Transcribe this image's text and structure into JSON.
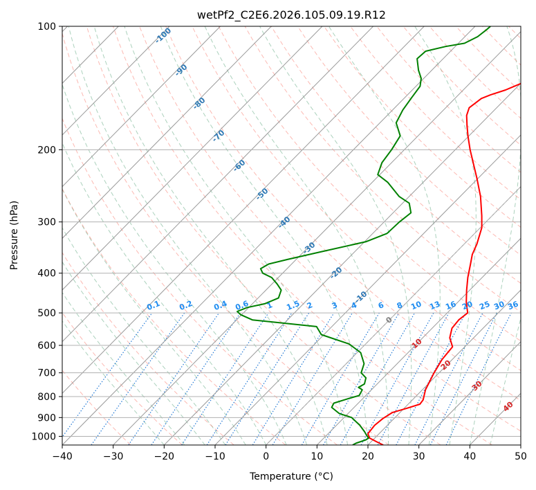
{
  "chart_data": {
    "type": "line",
    "title": "wetPf2_C2E6.2026.105.09.19.R12",
    "xlabel": "Temperature (°C)",
    "ylabel": "Pressure (hPa)",
    "xlim": [
      -40,
      50
    ],
    "ylim": [
      1050,
      100
    ],
    "y_scale": "log",
    "x_ticks": [
      -40,
      -30,
      -20,
      -10,
      0,
      10,
      20,
      30,
      40,
      50
    ],
    "y_ticks": [
      100,
      200,
      300,
      400,
      500,
      600,
      700,
      800,
      900,
      1000
    ],
    "grid": true,
    "skew_isotherms": true,
    "series": [
      {
        "color": "#ff0000",
        "points": [
          [
            1050,
            23.0
          ],
          [
            1030,
            21.0
          ],
          [
            1010,
            19.0
          ],
          [
            985,
            17.8
          ],
          [
            940,
            17.5
          ],
          [
            905,
            17.8
          ],
          [
            875,
            18.5
          ],
          [
            855,
            20.5
          ],
          [
            835,
            22.3
          ],
          [
            815,
            22.1
          ],
          [
            770,
            20.6
          ],
          [
            700,
            19.0
          ],
          [
            650,
            18.0
          ],
          [
            605,
            17.6
          ],
          [
            575,
            15.3
          ],
          [
            545,
            13.9
          ],
          [
            520,
            13.6
          ],
          [
            500,
            14.0
          ],
          [
            470,
            11.6
          ],
          [
            440,
            9.4
          ],
          [
            410,
            7.2
          ],
          [
            380,
            5.1
          ],
          [
            360,
            3.6
          ],
          [
            340,
            2.5
          ],
          [
            310,
            0.3
          ],
          [
            290,
            -2.0
          ],
          [
            260,
            -6.0
          ],
          [
            235,
            -10.2
          ],
          [
            200,
            -17.1
          ],
          [
            185,
            -20.2
          ],
          [
            175,
            -22.3
          ],
          [
            165,
            -24.4
          ],
          [
            158,
            -25.4
          ],
          [
            150,
            -24.8
          ],
          [
            147,
            -23.7
          ],
          [
            143,
            -21.7
          ],
          [
            138,
            -20.0
          ],
          [
            132,
            -19.5
          ],
          [
            127,
            -20.0
          ],
          [
            121,
            -19.4
          ],
          [
            116,
            -20.7
          ],
          [
            112,
            -21.6
          ],
          [
            107,
            -23.1
          ],
          [
            103,
            -24.5
          ],
          [
            100,
            -25.5
          ]
        ]
      },
      {
        "color": "#008000",
        "points": [
          [
            1050,
            17.0
          ],
          [
            1040,
            17.3
          ],
          [
            1020,
            18.6
          ],
          [
            1010,
            18.8
          ],
          [
            995,
            17.9
          ],
          [
            975,
            16.8
          ],
          [
            940,
            14.6
          ],
          [
            900,
            11.5
          ],
          [
            880,
            8.3
          ],
          [
            850,
            5.6
          ],
          [
            830,
            5.2
          ],
          [
            810,
            7.1
          ],
          [
            795,
            8.7
          ],
          [
            770,
            8.2
          ],
          [
            760,
            7.0
          ],
          [
            745,
            7.5
          ],
          [
            720,
            6.6
          ],
          [
            700,
            4.7
          ],
          [
            665,
            3.5
          ],
          [
            625,
            0.7
          ],
          [
            595,
            -3.3
          ],
          [
            565,
            -10.5
          ],
          [
            540,
            -13.0
          ],
          [
            520,
            -26.9
          ],
          [
            505,
            -30.2
          ],
          [
            496,
            -31.5
          ],
          [
            485,
            -30.3
          ],
          [
            475,
            -27.6
          ],
          [
            460,
            -26.0
          ],
          [
            440,
            -27.0
          ],
          [
            425,
            -29.0
          ],
          [
            410,
            -31.3
          ],
          [
            400,
            -33.9
          ],
          [
            390,
            -35.2
          ],
          [
            380,
            -34.5
          ],
          [
            370,
            -31.6
          ],
          [
            355,
            -26.7
          ],
          [
            335,
            -19.7
          ],
          [
            320,
            -17.2
          ],
          [
            300,
            -17.0
          ],
          [
            285,
            -16.5
          ],
          [
            270,
            -18.7
          ],
          [
            260,
            -22.0
          ],
          [
            240,
            -27.0
          ],
          [
            230,
            -30.4
          ],
          [
            215,
            -31.9
          ],
          [
            200,
            -32.5
          ],
          [
            185,
            -33.5
          ],
          [
            172,
            -36.8
          ],
          [
            160,
            -38.0
          ],
          [
            150,
            -38.6
          ],
          [
            140,
            -39.2
          ],
          [
            134,
            -40.5
          ],
          [
            128,
            -42.6
          ],
          [
            120,
            -45.1
          ],
          [
            115,
            -44.9
          ],
          [
            112,
            -41.9
          ],
          [
            110,
            -38.8
          ],
          [
            106,
            -37.5
          ],
          [
            102,
            -37.1
          ],
          [
            100,
            -37.0
          ]
        ]
      }
    ],
    "dry_adiabat_labels": [
      -100,
      -90,
      -80,
      -70,
      -60,
      -50,
      -40,
      -30,
      -20,
      -10,
      0,
      10,
      20,
      30,
      40
    ],
    "mixing_ratio_labels": [
      "0.1",
      "0.2",
      "0.4",
      "0.6",
      "1",
      "1.5",
      "2",
      "3",
      "4",
      "6",
      "8",
      "10",
      "13",
      "16",
      "20",
      "25",
      "30",
      "36"
    ]
  }
}
